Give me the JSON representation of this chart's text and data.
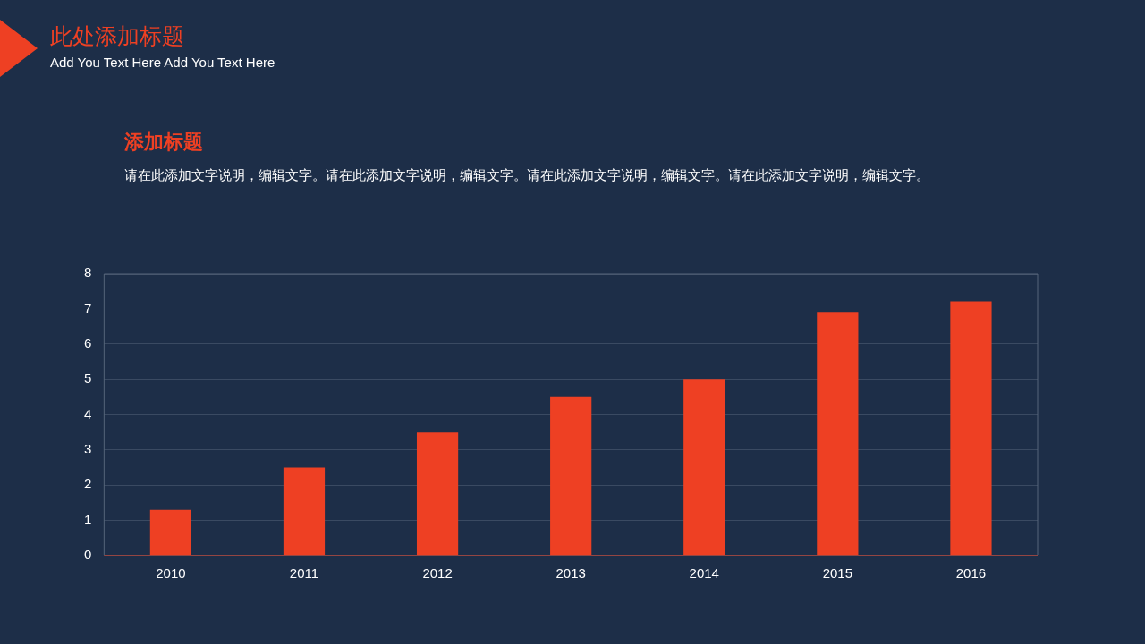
{
  "chart_data": {
    "type": "bar",
    "title": "此处添加标题",
    "subtitle": "Add You Text Here Add You Text Here",
    "annotations": [
      "添加标题",
      "请在此添加文字说明，编辑文字。请在此添加文字说明，编辑文字。请在此添加文字说明，编辑文字。请在此添加文字说明，编辑文字。"
    ],
    "categories": [
      "2010",
      "2011",
      "2012",
      "2013",
      "2014",
      "2015",
      "2016"
    ],
    "values": [
      1.3,
      2.5,
      3.5,
      4.5,
      5.0,
      6.9,
      7.2
    ],
    "color": "#ee4023",
    "ylim": [
      0,
      8
    ],
    "yticks": [
      0,
      1,
      2,
      3,
      4,
      5,
      6,
      7,
      8
    ],
    "grid": "y"
  }
}
